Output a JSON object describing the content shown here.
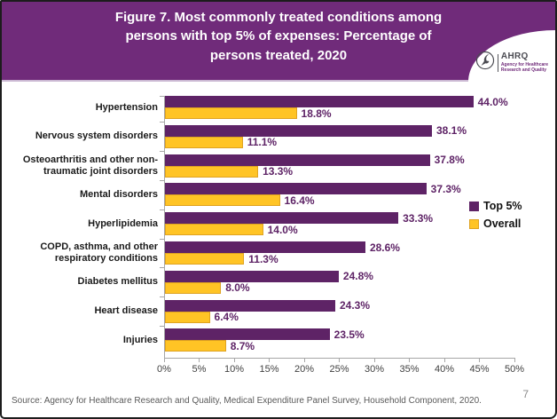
{
  "slide": {
    "title_lines": [
      "Figure 7. Most commonly treated conditions among",
      "persons with top 5% of expenses: Percentage of",
      "persons treated, 2020"
    ],
    "source": "Source: Agency for Healthcare Research and Quality, Medical Expenditure Panel Survey, Household Component, 2020.",
    "page_number": "7"
  },
  "logo": {
    "org_abbrev": "AHRQ",
    "tagline_line1": "Agency for Healthcare",
    "tagline_line2": "Research and Quality"
  },
  "colors": {
    "header_bg": "#702B7A",
    "bar_top5": "#5E2366",
    "bar_overall": "#FFC425",
    "bar_overall_border": "#DFA321",
    "value_text": "#5E2366",
    "axis_line": "#A6A6A6",
    "axis_text": "#3F3F3F",
    "source_text": "#595959"
  },
  "legend": {
    "position": "right-middle",
    "items": [
      {
        "label": "Top 5%",
        "color": "#5E2366",
        "border": "#5E2366"
      },
      {
        "label": "Overall",
        "color": "#FFC425",
        "border": "#DFA321"
      }
    ]
  },
  "chart_data": {
    "type": "bar",
    "orientation": "horizontal",
    "title": "Figure 7. Most commonly treated conditions among persons with top 5% of expenses: Percentage of persons treated, 2020",
    "categories": [
      "Hypertension",
      "Nervous system disorders",
      "Osteoarthritis and other non-traumatic joint disorders",
      "Mental disorders",
      "Hyperlipidemia",
      "COPD, asthma, and other respiratory conditions",
      "Diabetes mellitus",
      "Heart disease",
      "Injuries"
    ],
    "category_label_lines": [
      [
        "Hypertension"
      ],
      [
        "Nervous system disorders"
      ],
      [
        "Osteoarthritis and other non-",
        "traumatic joint disorders"
      ],
      [
        "Mental disorders"
      ],
      [
        "Hyperlipidemia"
      ],
      [
        "COPD, asthma, and other",
        "respiratory conditions"
      ],
      [
        "Diabetes mellitus"
      ],
      [
        "Heart disease"
      ],
      [
        "Injuries"
      ]
    ],
    "series": [
      {
        "name": "Top 5%",
        "values": [
          44.0,
          38.1,
          37.8,
          37.3,
          33.3,
          28.6,
          24.8,
          24.3,
          23.5
        ]
      },
      {
        "name": "Overall",
        "values": [
          18.8,
          11.1,
          13.3,
          16.4,
          14.0,
          11.3,
          8.0,
          6.4,
          8.7
        ]
      }
    ],
    "value_label_suffix": "%",
    "xlim": [
      0,
      50
    ],
    "xticks": [
      "0%",
      "5%",
      "10%",
      "15%",
      "20%",
      "25%",
      "30%",
      "35%",
      "40%",
      "45%",
      "50%"
    ],
    "grid": false,
    "legend_position": "right"
  }
}
